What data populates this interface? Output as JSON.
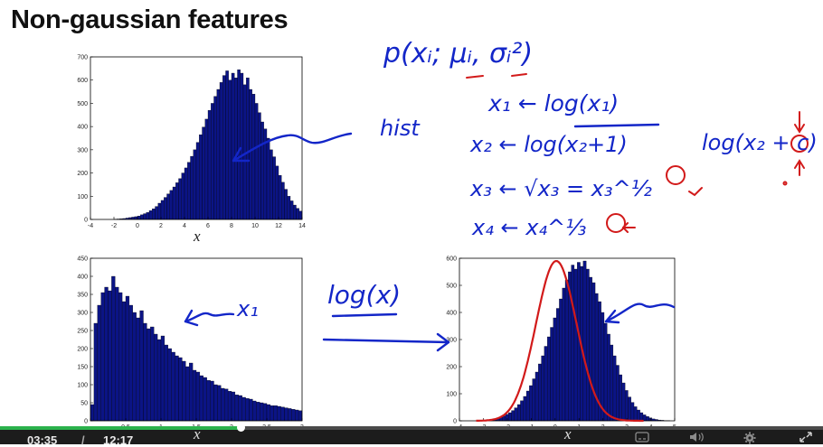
{
  "slide": {
    "title": "Non-gaussian features"
  },
  "chart_data": [
    {
      "type": "bar",
      "panel": "top-left",
      "title": "",
      "xlabel": "x",
      "ylabel": "",
      "xlim": [
        -4,
        14
      ],
      "ylim": [
        0,
        700
      ],
      "xticks": [
        -4,
        -2,
        0,
        2,
        4,
        6,
        8,
        10,
        12,
        14
      ],
      "yticks": [
        0,
        100,
        200,
        300,
        400,
        500,
        600,
        700
      ],
      "bin_start": -2,
      "bin_width": 0.25,
      "values": [
        1,
        2,
        3,
        4,
        6,
        8,
        10,
        12,
        15,
        20,
        25,
        30,
        38,
        46,
        56,
        70,
        82,
        95,
        110,
        125,
        140,
        158,
        176,
        200,
        222,
        246,
        272,
        300,
        332,
        365,
        398,
        432,
        470,
        500,
        530,
        560,
        590,
        620,
        640,
        600,
        630,
        610,
        645,
        630,
        580,
        610,
        560,
        540,
        500,
        460,
        420,
        390,
        350,
        300,
        270,
        230,
        190,
        160,
        130,
        100,
        80,
        62,
        48,
        36,
        26,
        20,
        14,
        10,
        7,
        5,
        4,
        3,
        2,
        1,
        1,
        1,
        1,
        1,
        1,
        1,
        1,
        1,
        1,
        1,
        1,
        1,
        1,
        1,
        1,
        1
      ],
      "color": "#0b1485"
    },
    {
      "type": "bar",
      "panel": "bottom-left",
      "title": "",
      "xlabel": "x",
      "ylabel": "",
      "xlim": [
        0,
        3
      ],
      "ylim": [
        0,
        450
      ],
      "xticks": [
        0,
        0.5,
        1,
        1.5,
        2,
        2.5,
        3
      ],
      "xtick_labels": [
        "",
        "0.5",
        "1",
        "1.5",
        "2",
        "2.5",
        "3"
      ],
      "yticks": [
        0,
        50,
        100,
        150,
        200,
        250,
        300,
        350,
        400,
        450
      ],
      "bin_start": 0,
      "bin_width": 0.05,
      "values": [
        45,
        270,
        320,
        355,
        370,
        360,
        400,
        370,
        355,
        330,
        345,
        320,
        300,
        285,
        305,
        270,
        255,
        260,
        240,
        225,
        235,
        210,
        200,
        190,
        180,
        175,
        165,
        150,
        160,
        140,
        135,
        125,
        120,
        112,
        110,
        100,
        98,
        90,
        88,
        82,
        80,
        72,
        70,
        65,
        62,
        60,
        55,
        52,
        50,
        48,
        45,
        42,
        42,
        40,
        38,
        36,
        34,
        32,
        30,
        28
      ],
      "color": "#0b1485"
    },
    {
      "type": "bar",
      "panel": "bottom-right",
      "title": "",
      "xlabel": "x",
      "ylabel": "",
      "xlim": [
        -4,
        5
      ],
      "ylim": [
        0,
        600
      ],
      "xticks": [
        -4,
        -3,
        -2,
        -1,
        0,
        1,
        2,
        3,
        4,
        5
      ],
      "yticks": [
        0,
        100,
        200,
        300,
        400,
        500,
        600
      ],
      "bin_start": -3.2,
      "bin_width": 0.125,
      "values": [
        1,
        2,
        3,
        4,
        6,
        8,
        10,
        14,
        18,
        24,
        30,
        38,
        48,
        60,
        74,
        90,
        110,
        130,
        155,
        180,
        210,
        240,
        275,
        310,
        345,
        380,
        415,
        450,
        490,
        520,
        550,
        575,
        560,
        585,
        570,
        590,
        560,
        530,
        510,
        470,
        440,
        400,
        360,
        320,
        280,
        240,
        205,
        170,
        140,
        112,
        88,
        68,
        52,
        40,
        30,
        22,
        16,
        11,
        7,
        5,
        3,
        2,
        1,
        1
      ],
      "color": "#0b1485",
      "overlay": "red hand-drawn gaussian fit"
    }
  ],
  "annotations": {
    "formula_top": "p(xᵢ; μᵢ, σᵢ²)",
    "hist_label": "hist",
    "arrow_x1_label": "x₁",
    "transform_label": "log(x)",
    "eq1": "x₁ ← log(x₁)",
    "eq2": "x₂ ← log(x₂+1)",
    "eq3": "x₃ ← √x₃ = x₃^½",
    "eq4": "x₄ ← x₄^⅓",
    "eq_side": "log(x₂ + c)"
  },
  "player": {
    "current_time": "03:35",
    "separator": "/",
    "total_time": "12:17",
    "progress": 0.292,
    "icons": [
      "captions-icon",
      "volume-icon",
      "settings-icon",
      "fullscreen-icon"
    ]
  }
}
